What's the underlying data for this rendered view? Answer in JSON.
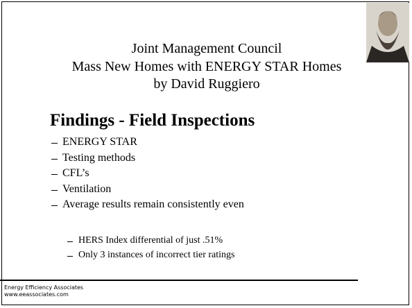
{
  "slide": {
    "title": [
      "Joint Management Council",
      "Mass New Homes with ENERGY STAR Homes",
      "by David Ruggiero"
    ],
    "heading": "Findings - Field Inspections",
    "bullets": [
      "ENERGY STAR",
      "Testing methods",
      "CFL’s",
      "Ventilation",
      "Average results remain consistently even"
    ],
    "sub_bullets": [
      "HERS Index differential of just .51%",
      "Only 3 instances of incorrect tier ratings"
    ],
    "footer": [
      "Energy Efficiency Associates",
      "www.eeassociates.com"
    ]
  }
}
